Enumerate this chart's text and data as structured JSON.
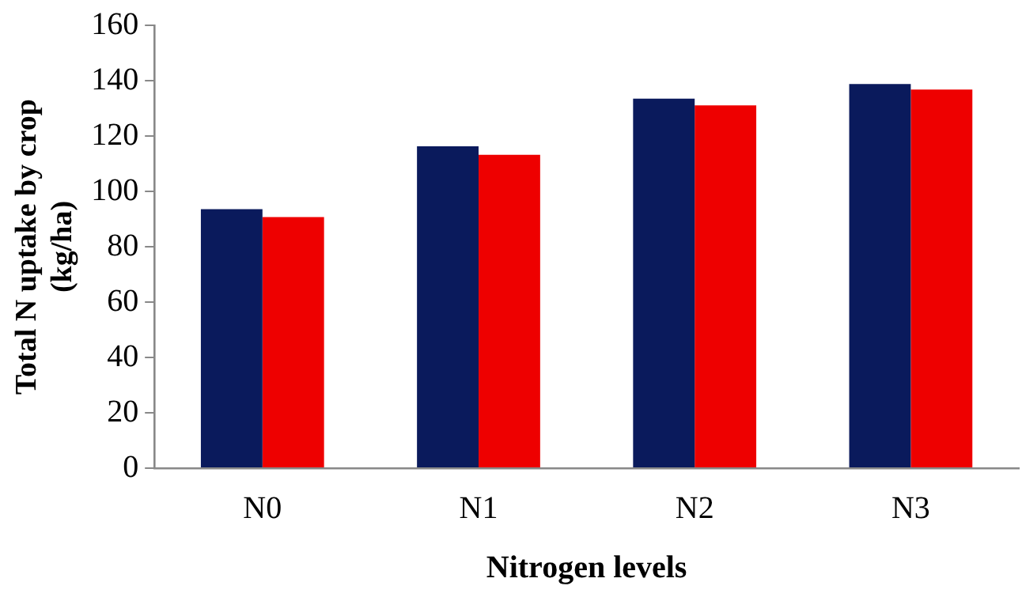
{
  "chart_data": {
    "type": "bar",
    "xlabel": "Nitrogen levels",
    "ylabel": "Total N uptake by crop (kg/ha)",
    "categories": [
      "N0",
      "N1",
      "N2",
      "N3"
    ],
    "series": [
      {
        "color": "#0a1a5c",
        "values": [
          93.6,
          116.3,
          133.5,
          138.8
        ]
      },
      {
        "color": "#ee0000",
        "values": [
          90.7,
          113.2,
          131.1,
          136.8
        ]
      }
    ],
    "ylim": [
      0,
      160
    ],
    "yticks": [
      0,
      20,
      40,
      60,
      80,
      100,
      120,
      140,
      160
    ],
    "grid": false,
    "legend": false
  }
}
